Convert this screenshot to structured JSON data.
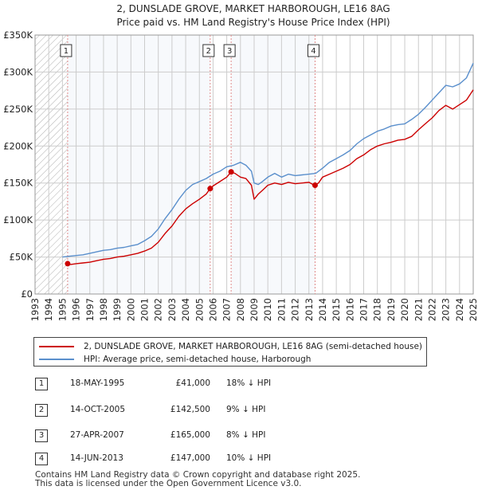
{
  "chart_data": {
    "type": "line",
    "title_line1": "2, DUNSLADE GROVE, MARKET HARBOROUGH, LE16 8AG",
    "title_line2": "Price paid vs. HM Land Registry's House Price Index (HPI)",
    "xlim": [
      1993,
      2025
    ],
    "ylim": [
      0,
      350000
    ],
    "x_ticks": [
      "1993",
      "1994",
      "1995",
      "1996",
      "1997",
      "1998",
      "1999",
      "2000",
      "2001",
      "2002",
      "2003",
      "2004",
      "2005",
      "2006",
      "2007",
      "2008",
      "2009",
      "2010",
      "2011",
      "2012",
      "2013",
      "2014",
      "2015",
      "2016",
      "2017",
      "2018",
      "2019",
      "2020",
      "2021",
      "2022",
      "2023",
      "2024",
      "2025"
    ],
    "y_ticks": [
      {
        "value": 0,
        "label": "£0"
      },
      {
        "value": 50000,
        "label": "£50K"
      },
      {
        "value": 100000,
        "label": "£100K"
      },
      {
        "value": 150000,
        "label": "£150K"
      },
      {
        "value": 200000,
        "label": "£200K"
      },
      {
        "value": 250000,
        "label": "£250K"
      },
      {
        "value": 300000,
        "label": "£300K"
      },
      {
        "value": 350000,
        "label": "£350K"
      }
    ],
    "hatched_range": [
      1993,
      1995.38
    ],
    "colors": {
      "price": "#cc0000",
      "hpi": "#5a8fcc",
      "marker_line": "#e08a8a",
      "grid": "#cccccc",
      "band": "#e8eef7"
    },
    "series": [
      {
        "name": "2, DUNSLADE GROVE, MARKET HARBOROUGH, LE16 8AG (semi-detached house)",
        "color": "#cc0000",
        "x": [
          1995.38,
          1995.6,
          1996,
          1996.5,
          1997,
          1997.5,
          1998,
          1998.5,
          1999,
          1999.5,
          2000,
          2000.5,
          2001,
          2001.5,
          2002,
          2002.5,
          2003,
          2003.5,
          2004,
          2004.5,
          2005,
          2005.5,
          2005.79,
          2006,
          2006.5,
          2007,
          2007.32,
          2007.6,
          2008,
          2008.4,
          2008.8,
          2009,
          2009.3,
          2009.6,
          2010,
          2010.5,
          2011,
          2011.5,
          2012,
          2012.5,
          2013,
          2013.3,
          2013.45,
          2013.7,
          2014,
          2014.5,
          2015,
          2015.5,
          2016,
          2016.5,
          2017,
          2017.5,
          2018,
          2018.5,
          2019,
          2019.5,
          2020,
          2020.5,
          2021,
          2021.5,
          2022,
          2022.5,
          2023,
          2023.5,
          2024,
          2024.5,
          2025
        ],
        "y": [
          41000,
          40000,
          41000,
          42000,
          43000,
          45000,
          47000,
          48000,
          50000,
          51000,
          53000,
          55000,
          58000,
          62000,
          70000,
          82000,
          92000,
          105000,
          115000,
          122000,
          128000,
          135000,
          142500,
          146000,
          152000,
          158000,
          165000,
          163000,
          158000,
          156000,
          147000,
          128000,
          135000,
          140000,
          147000,
          150000,
          148000,
          151000,
          149000,
          150000,
          151000,
          148000,
          147000,
          150000,
          158000,
          162000,
          166000,
          170000,
          175000,
          183000,
          188000,
          195000,
          200000,
          203000,
          205000,
          208000,
          209000,
          213000,
          222000,
          230000,
          238000,
          248000,
          255000,
          250000,
          256000,
          262000,
          276000
        ]
      },
      {
        "name": "HPI: Average price, semi-detached house, Harborough",
        "color": "#5a8fcc",
        "x": [
          1995,
          1995.5,
          1996,
          1996.5,
          1997,
          1997.5,
          1998,
          1998.5,
          1999,
          1999.5,
          2000,
          2000.5,
          2001,
          2001.5,
          2002,
          2002.5,
          2003,
          2003.5,
          2004,
          2004.5,
          2005,
          2005.5,
          2006,
          2006.5,
          2007,
          2007.5,
          2008,
          2008.4,
          2008.8,
          2009,
          2009.3,
          2009.6,
          2010,
          2010.5,
          2011,
          2011.5,
          2012,
          2012.5,
          2013,
          2013.5,
          2014,
          2014.5,
          2015,
          2015.5,
          2016,
          2016.5,
          2017,
          2017.5,
          2018,
          2018.5,
          2019,
          2019.5,
          2020,
          2020.5,
          2021,
          2021.5,
          2022,
          2022.5,
          2023,
          2023.5,
          2024,
          2024.5,
          2025
        ],
        "y": [
          50000,
          51000,
          52000,
          53000,
          55000,
          57000,
          59000,
          60000,
          62000,
          63000,
          65000,
          67000,
          72000,
          78000,
          88000,
          102000,
          114000,
          128000,
          140000,
          148000,
          152000,
          156000,
          162000,
          166000,
          172000,
          174000,
          178000,
          174000,
          166000,
          150000,
          148000,
          152000,
          158000,
          163000,
          158000,
          162000,
          160000,
          161000,
          162000,
          163000,
          170000,
          178000,
          183000,
          188000,
          194000,
          203000,
          210000,
          215000,
          220000,
          223000,
          227000,
          229000,
          230000,
          236000,
          243000,
          252000,
          262000,
          272000,
          282000,
          280000,
          284000,
          292000,
          312000
        ]
      }
    ],
    "transactions": [
      {
        "num": "1",
        "date": "18-MAY-1995",
        "year_frac": 1995.38,
        "price_value": 41000,
        "price": "£41,000",
        "hpi": "18% ↓ HPI"
      },
      {
        "num": "2",
        "date": "14-OCT-2005",
        "year_frac": 2005.79,
        "price_value": 142500,
        "price": "£142,500",
        "hpi": "9% ↓ HPI"
      },
      {
        "num": "3",
        "date": "27-APR-2007",
        "year_frac": 2007.32,
        "price_value": 165000,
        "price": "£165,000",
        "hpi": "8% ↓ HPI"
      },
      {
        "num": "4",
        "date": "14-JUN-2013",
        "year_frac": 2013.45,
        "price_value": 147000,
        "price": "£147,000",
        "hpi": "10% ↓ HPI"
      }
    ]
  },
  "legend": {
    "price_label": "2, DUNSLADE GROVE, MARKET HARBOROUGH, LE16 8AG (semi-detached house)",
    "hpi_label": "HPI: Average price, semi-detached house, Harborough"
  },
  "footer": {
    "line1": "Contains HM Land Registry data © Crown copyright and database right 2025.",
    "line2": "This data is licensed under the Open Government Licence v3.0."
  }
}
